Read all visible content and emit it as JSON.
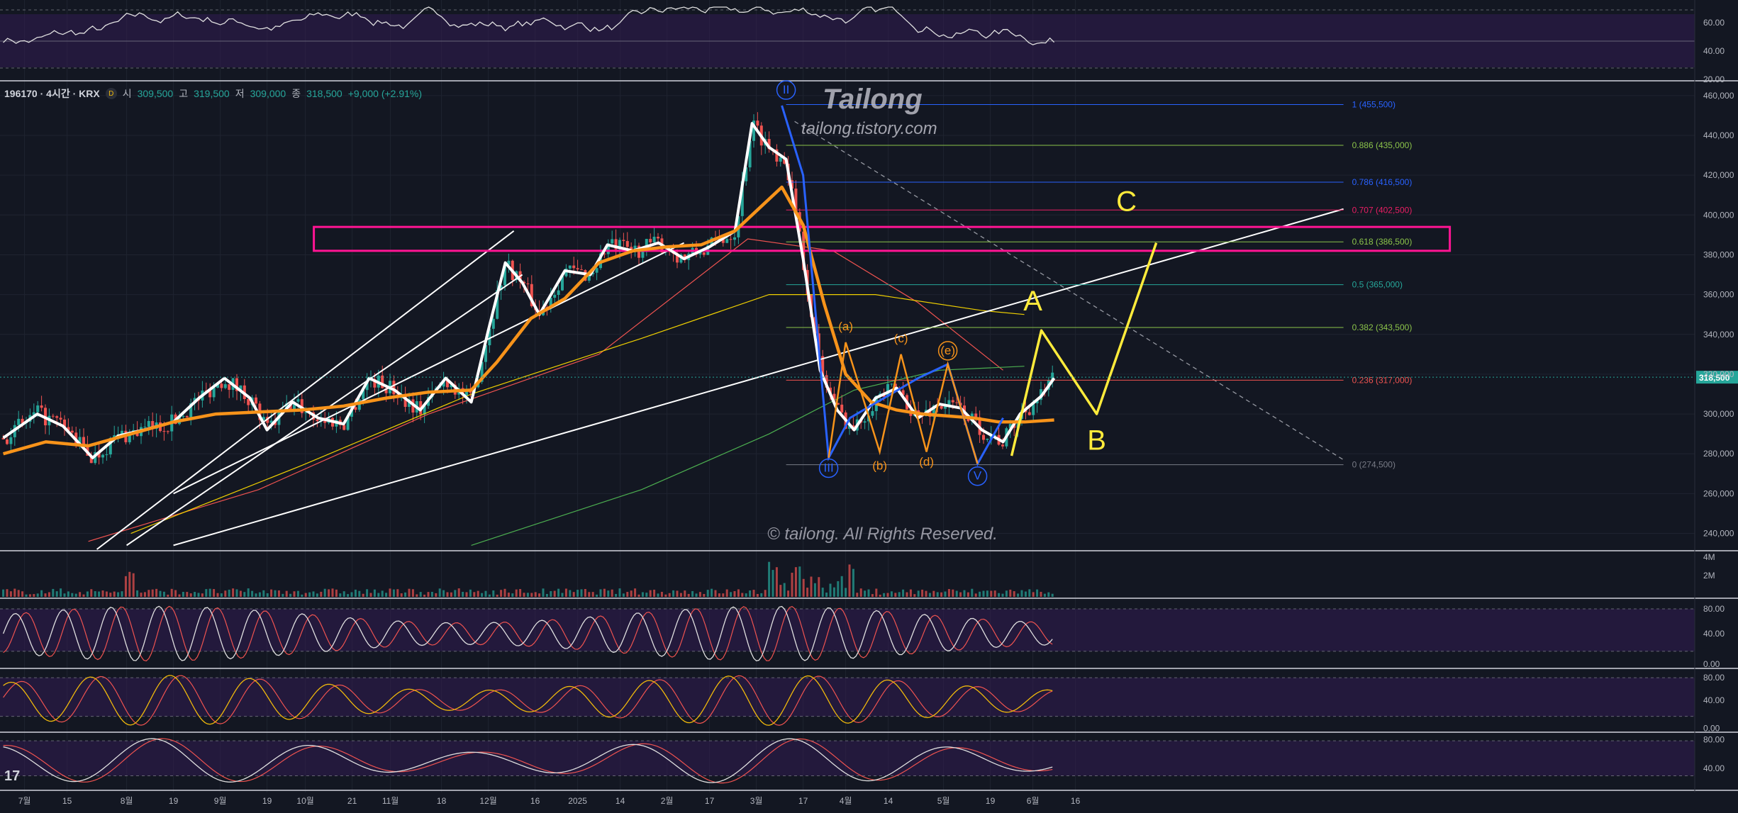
{
  "legend": {
    "symbol": "196170 · 4시간 · KRX",
    "badge": "D",
    "open_label": "시",
    "open": "309,500",
    "high_label": "고",
    "high": "319,500",
    "low_label": "저",
    "low": "309,000",
    "close_label": "종",
    "close": "318,500",
    "change": "+9,000 (+2.91%)"
  },
  "watermark": {
    "title": "Tailong",
    "url": "tailong.tistory.com",
    "copyright": "© tailong. All Rights Reserved."
  },
  "tv_logo": "17",
  "colors": {
    "background": "#131722",
    "up": "#26a69a",
    "down": "#ef5350",
    "ma_white": "#ffffff",
    "ma_orange": "#f7931a",
    "hand_yellow": "#ffeb3b",
    "zone_magenta": "#ff1493",
    "panel_purple": "#311b52",
    "elliott_blue": "#2962ff"
  },
  "chart_data": {
    "type": "line",
    "x_ticks": [
      "7월",
      "15",
      "8월",
      "19",
      "9월",
      "19",
      "10월",
      "21",
      "11월",
      "18",
      "12월",
      "16",
      "2025",
      "14",
      "2월",
      "17",
      "3월",
      "17",
      "4월",
      "14",
      "5월",
      "19",
      "6월",
      "16"
    ],
    "ylim": [
      232000,
      466000
    ],
    "y_ticks": [
      240000,
      260000,
      280000,
      300000,
      320000,
      340000,
      360000,
      380000,
      400000,
      420000,
      440000,
      460000
    ],
    "y_tick_labels": [
      "240,000",
      "260,000",
      "280,000",
      "300,000",
      "320,000",
      "340,000",
      "360,000",
      "380,000",
      "400,000",
      "420,000",
      "440,000",
      "460,000"
    ],
    "last_price": 318500,
    "last_price_label": "318,500",
    "series": [
      {
        "values": [
          [
            0,
            288000
          ],
          [
            8,
            300000
          ],
          [
            14,
            294000
          ],
          [
            21,
            278000
          ],
          [
            27,
            289000
          ],
          [
            33,
            292000
          ],
          [
            40,
            296000
          ],
          [
            46,
            308000
          ],
          [
            52,
            318000
          ],
          [
            58,
            308000
          ],
          [
            62,
            292000
          ],
          [
            68,
            306000
          ],
          [
            74,
            298000
          ],
          [
            80,
            295000
          ],
          [
            86,
            318000
          ],
          [
            92,
            312000
          ],
          [
            98,
            302000
          ],
          [
            104,
            318000
          ],
          [
            110,
            306000
          ],
          [
            114,
            342000
          ],
          [
            118,
            376000
          ],
          [
            122,
            366000
          ],
          [
            126,
            350000
          ],
          [
            132,
            372000
          ],
          [
            138,
            370000
          ],
          [
            142,
            385000
          ],
          [
            148,
            382000
          ],
          [
            154,
            386000
          ],
          [
            160,
            378000
          ],
          [
            166,
            384000
          ],
          [
            172,
            392000
          ],
          [
            176,
            446000
          ],
          [
            180,
            434000
          ],
          [
            184,
            428000
          ],
          [
            188,
            378000
          ],
          [
            192,
            322000
          ],
          [
            196,
            302000
          ],
          [
            200,
            292000
          ],
          [
            205,
            308000
          ],
          [
            210,
            313000
          ],
          [
            215,
            298000
          ],
          [
            220,
            305000
          ],
          [
            225,
            303000
          ],
          [
            230,
            292000
          ],
          [
            235,
            286000
          ],
          [
            239,
            300000
          ],
          [
            244,
            309000
          ],
          [
            247,
            318000
          ]
        ]
      },
      {
        "values": [
          [
            0,
            280000
          ],
          [
            10,
            286000
          ],
          [
            20,
            284000
          ],
          [
            30,
            290000
          ],
          [
            40,
            296000
          ],
          [
            50,
            300000
          ],
          [
            60,
            301000
          ],
          [
            70,
            302000
          ],
          [
            80,
            304000
          ],
          [
            90,
            308000
          ],
          [
            100,
            311000
          ],
          [
            110,
            312000
          ],
          [
            116,
            326000
          ],
          [
            124,
            348000
          ],
          [
            132,
            358000
          ],
          [
            140,
            376000
          ],
          [
            148,
            382000
          ],
          [
            156,
            384000
          ],
          [
            164,
            385000
          ],
          [
            172,
            392000
          ],
          [
            178,
            404000
          ],
          [
            183,
            414000
          ],
          [
            188,
            395000
          ],
          [
            193,
            355000
          ],
          [
            198,
            320000
          ],
          [
            204,
            306000
          ],
          [
            210,
            302000
          ],
          [
            216,
            300000
          ],
          [
            222,
            299000
          ],
          [
            228,
            298000
          ],
          [
            234,
            296000
          ],
          [
            240,
            296000
          ],
          [
            247,
            297000
          ]
        ]
      }
    ],
    "fibonacci": [
      {
        "label": "1 (455,500)",
        "value": 455500,
        "color": "#2962ff"
      },
      {
        "label": "0.886 (435,000)",
        "value": 435000,
        "color": "#8bc34a"
      },
      {
        "label": "0.786 (416,500)",
        "value": 416500,
        "color": "#2962ff"
      },
      {
        "label": "0.707 (402,500)",
        "value": 402500,
        "color": "#e91e63"
      },
      {
        "label": "0.618 (386,500)",
        "value": 386500,
        "color": "#8bc34a"
      },
      {
        "label": "0.5 (365,000)",
        "value": 365000,
        "color": "#26a69a"
      },
      {
        "label": "0.382 (343,500)",
        "value": 343500,
        "color": "#8bc34a"
      },
      {
        "label": "0.236 (317,000)",
        "value": 317000,
        "color": "#ef5350"
      },
      {
        "label": "0 (274,500)",
        "value": 274500,
        "color": "#787b86"
      }
    ],
    "zone": {
      "from": 382000,
      "to": 394000
    },
    "elliott_labels": [
      {
        "text": "II",
        "t": 184,
        "v": 461000,
        "color": "#2962ff",
        "circle": true
      },
      {
        "text": "III",
        "t": 194,
        "v": 271000,
        "color": "#2962ff",
        "circle": true
      },
      {
        "text": "V",
        "t": 229,
        "v": 267000,
        "color": "#2962ff",
        "circle": true
      },
      {
        "text": "(a)",
        "t": 198,
        "v": 342000,
        "color": "#f7931a"
      },
      {
        "text": "(b)",
        "t": 206,
        "v": 272000,
        "color": "#f7931a"
      },
      {
        "text": "(c)",
        "t": 211,
        "v": 336000,
        "color": "#f7931a"
      },
      {
        "text": "(d)",
        "t": 217,
        "v": 274000,
        "color": "#f7931a"
      },
      {
        "text": "(e)",
        "t": 222,
        "v": 330000,
        "color": "#f7931a",
        "circle": true
      }
    ],
    "projection": {
      "points": [
        [
          237,
          279000
        ],
        [
          244,
          342000
        ],
        [
          257,
          300000
        ],
        [
          271,
          386000
        ]
      ],
      "labels": [
        "A",
        "B",
        "C"
      ]
    },
    "volume_ticks": [
      "4M",
      "2M"
    ],
    "osc_ticks": [
      "80.00",
      "40.00",
      "0.00"
    ],
    "top_rsi_ticks": [
      "60.00",
      "40.00",
      "20.00"
    ]
  }
}
